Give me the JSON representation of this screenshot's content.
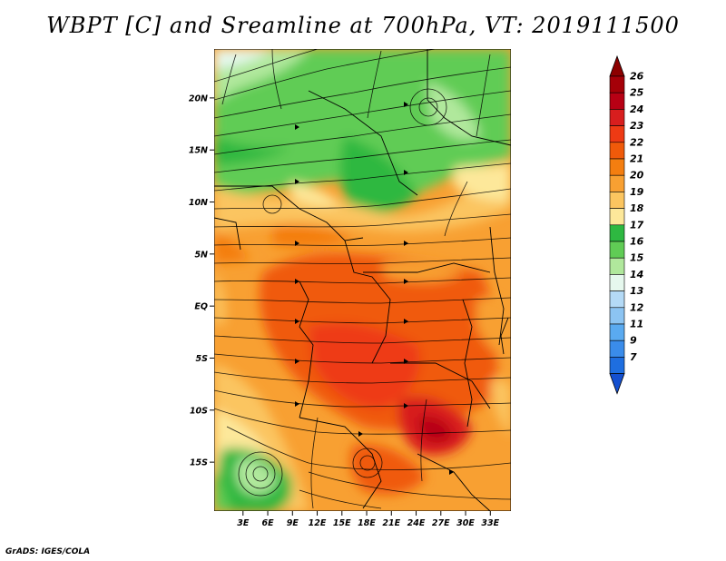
{
  "title": "WBPT [C] and Sreamline at 700hPa, VT: 2019111500",
  "credit": "GrADS: IGES/COLA",
  "map": {
    "lat_range": [
      -19.7,
      24.7
    ],
    "lon_range": [
      -0.5,
      35.5
    ],
    "lat_ticks": [
      {
        "value": 20,
        "label": "20N"
      },
      {
        "value": 15,
        "label": "15N"
      },
      {
        "value": 10,
        "label": "10N"
      },
      {
        "value": 5,
        "label": "5N"
      },
      {
        "value": 0,
        "label": "EQ"
      },
      {
        "value": -5,
        "label": "5S"
      },
      {
        "value": -10,
        "label": "10S"
      },
      {
        "value": -15,
        "label": "15S"
      }
    ],
    "lon_ticks": [
      {
        "value": 3,
        "label": "3E"
      },
      {
        "value": 6,
        "label": "6E"
      },
      {
        "value": 9,
        "label": "9E"
      },
      {
        "value": 12,
        "label": "12E"
      },
      {
        "value": 15,
        "label": "15E"
      },
      {
        "value": 18,
        "label": "18E"
      },
      {
        "value": 21,
        "label": "21E"
      },
      {
        "value": 24,
        "label": "24E"
      },
      {
        "value": 27,
        "label": "27E"
      },
      {
        "value": 30,
        "label": "30E"
      },
      {
        "value": 33,
        "label": "33E"
      }
    ]
  },
  "colorbar": {
    "levels": [
      {
        "label": "26",
        "color": "#a50008"
      },
      {
        "label": "25",
        "color": "#b70014"
      },
      {
        "label": "24",
        "color": "#d81e1e"
      },
      {
        "label": "23",
        "color": "#ee3a14"
      },
      {
        "label": "22",
        "color": "#f05a0a"
      },
      {
        "label": "21",
        "color": "#f47e10"
      },
      {
        "label": "20",
        "color": "#f8a032"
      },
      {
        "label": "19",
        "color": "#fbc560"
      },
      {
        "label": "18",
        "color": "#fde89a"
      },
      {
        "label": "17",
        "color": "#2eb841"
      },
      {
        "label": "16",
        "color": "#60cc55"
      },
      {
        "label": "15",
        "color": "#b0e89c"
      },
      {
        "label": "14",
        "color": "#e6f8ee"
      },
      {
        "label": "13",
        "color": "#b4daf6"
      },
      {
        "label": "12",
        "color": "#8cc4f2"
      },
      {
        "label": "11",
        "color": "#5aaaf0"
      },
      {
        "label": "9",
        "color": "#3a8cea"
      },
      {
        "label": "7",
        "color": "#1e6ee0"
      }
    ],
    "top_color": "#8c0000",
    "bottom_color": "#1450d0"
  }
}
